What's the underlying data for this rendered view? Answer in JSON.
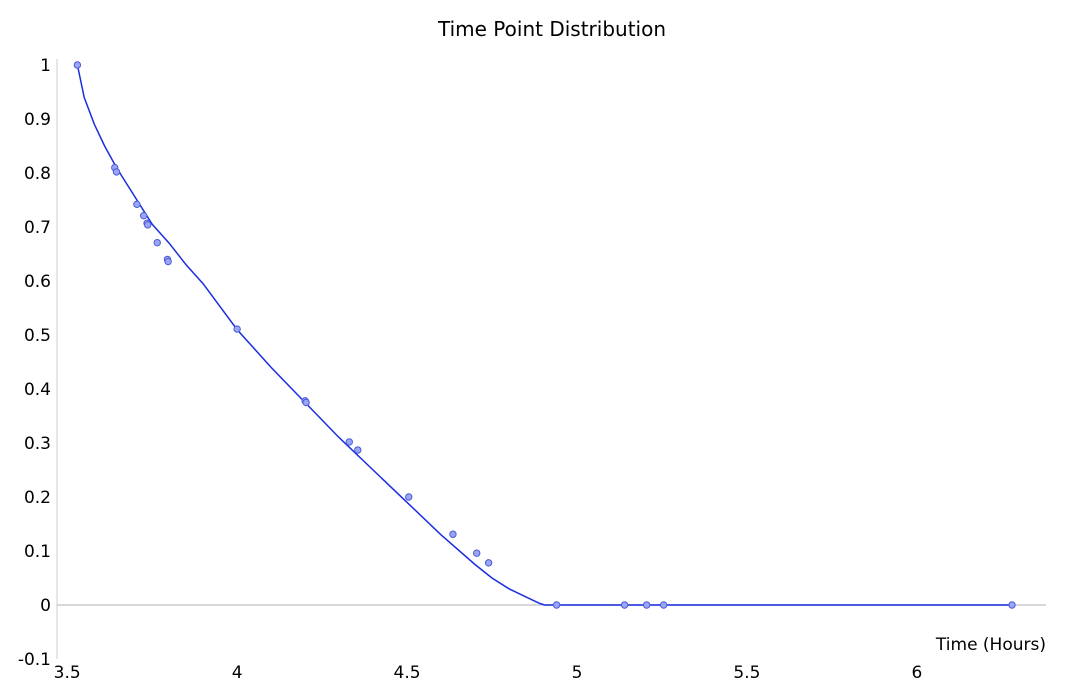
{
  "chart_data": {
    "type": "line",
    "title": "Time Point Distribution",
    "xlabel": "Time (Hours)",
    "ylabel": "",
    "xlim": [
      3.47,
      6.38
    ],
    "ylim": [
      -0.1,
      1.0
    ],
    "x_ticks": [
      3.5,
      4,
      4.5,
      5,
      5.5,
      6
    ],
    "x_tick_labels": [
      "3.5",
      "4",
      "4.5",
      "5",
      "5.5",
      "6"
    ],
    "y_ticks": [
      1,
      0.9,
      0.8,
      0.7,
      0.6,
      0.5,
      0.4,
      0.3,
      0.2,
      0.1,
      0,
      -0.1
    ],
    "y_tick_labels": [
      "1",
      "0.9",
      "0.8",
      "0.7",
      "0.6",
      "0.5",
      "0.4",
      "0.3",
      "0.2",
      "0.1",
      "0",
      "-0.1"
    ],
    "grid": false,
    "line_color": "#1a2ee0",
    "marker_fill": "#9aa6f5",
    "marker_stroke": "#4a5bd8",
    "axis_color": "#cccccc",
    "curve": {
      "x": [
        3.53,
        3.55,
        3.58,
        3.61,
        3.645,
        3.7,
        3.75,
        3.8,
        3.85,
        3.9,
        4.0,
        4.1,
        4.2,
        4.3,
        4.4,
        4.5,
        4.6,
        4.7,
        4.75,
        4.8,
        4.85,
        4.89,
        4.905,
        4.92,
        4.95,
        5.2,
        5.5,
        6.0,
        6.29
      ],
      "y": [
        1.0,
        0.94,
        0.89,
        0.85,
        0.81,
        0.755,
        0.705,
        0.67,
        0.63,
        0.595,
        0.51,
        0.44,
        0.375,
        0.31,
        0.25,
        0.19,
        0.13,
        0.075,
        0.05,
        0.03,
        0.015,
        0.003,
        0.0,
        0.0,
        0.0,
        0.0,
        0.0,
        0.0,
        0.0
      ]
    },
    "points": {
      "x": [
        3.53,
        3.64,
        3.645,
        3.705,
        3.725,
        3.735,
        3.737,
        3.765,
        3.795,
        3.797,
        4.0,
        4.2,
        4.203,
        4.33,
        4.355,
        4.505,
        4.635,
        4.705,
        4.74,
        4.94,
        5.14,
        5.205,
        5.255,
        6.28
      ],
      "y": [
        1.0,
        0.81,
        0.802,
        0.742,
        0.721,
        0.707,
        0.704,
        0.671,
        0.64,
        0.636,
        0.511,
        0.378,
        0.375,
        0.302,
        0.287,
        0.2,
        0.131,
        0.096,
        0.078,
        0.0,
        0.0,
        0.0,
        0.0,
        0.0
      ]
    }
  }
}
